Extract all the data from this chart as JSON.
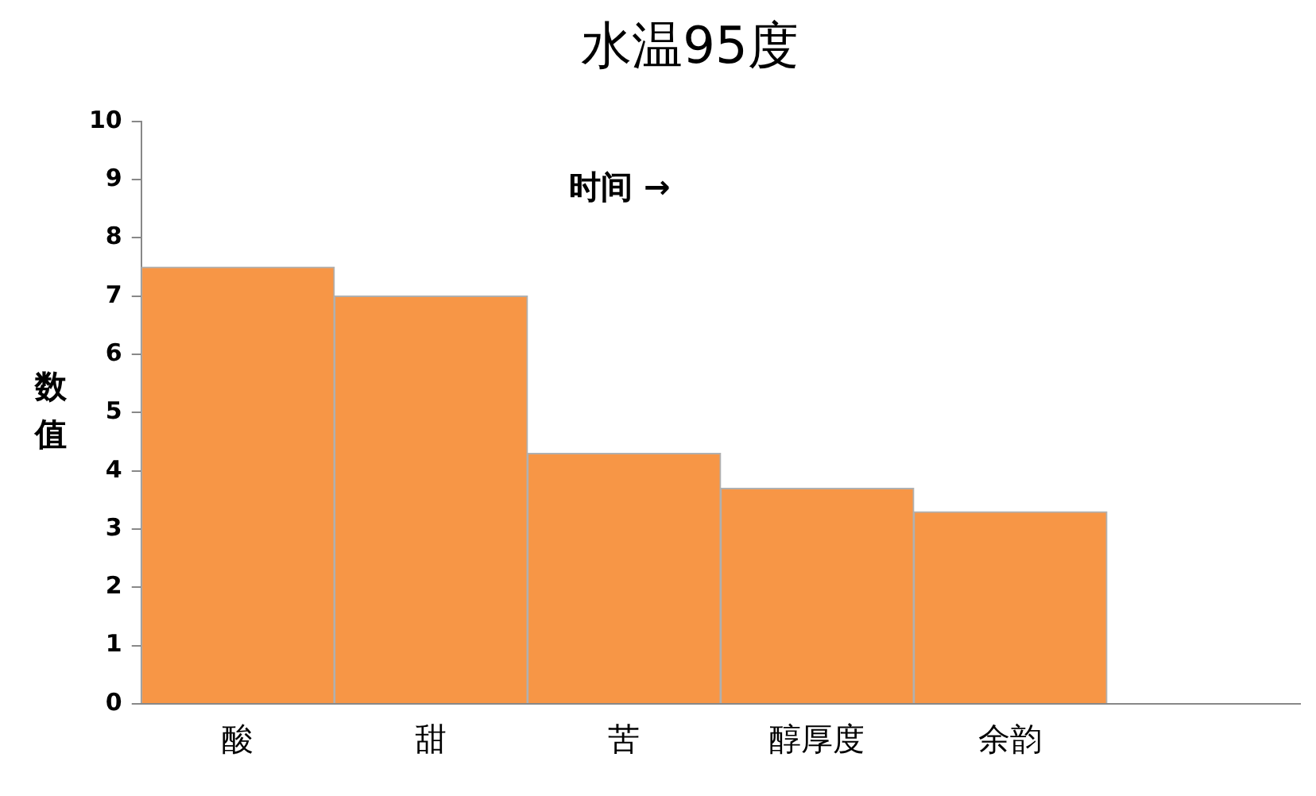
{
  "chart_data": {
    "type": "bar",
    "title": "水温95度",
    "ylabel": "数值",
    "annotations": [
      "时间 →"
    ],
    "categories": [
      "酸",
      "甜",
      "苦",
      "醇厚度",
      "余韵",
      null
    ],
    "values": [
      7.5,
      7,
      4.3,
      3.7,
      3.3,
      null
    ],
    "color": "#f79646",
    "ylim": [
      0,
      10
    ],
    "yticks": [
      0,
      1,
      2,
      3,
      4,
      5,
      6,
      7,
      8,
      9,
      10
    ]
  }
}
